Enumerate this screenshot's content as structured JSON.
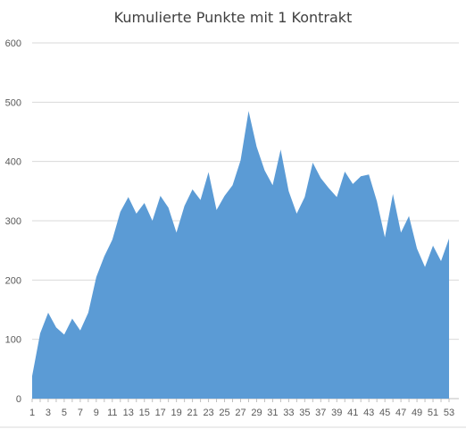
{
  "chart_data": {
    "type": "area",
    "title": "Kumulierte Punkte mit 1 Kontrakt",
    "xlabel": "",
    "ylabel": "",
    "ylim": [
      0,
      600
    ],
    "yticks": [
      0,
      100,
      200,
      300,
      400,
      500,
      600
    ],
    "x": [
      1,
      2,
      3,
      4,
      5,
      6,
      7,
      8,
      9,
      10,
      11,
      12,
      13,
      14,
      15,
      16,
      17,
      18,
      19,
      20,
      21,
      22,
      23,
      24,
      25,
      26,
      27,
      28,
      29,
      30,
      31,
      32,
      33,
      34,
      35,
      36,
      37,
      38,
      39,
      40,
      41,
      42,
      43,
      44,
      45,
      46,
      47,
      48,
      49,
      50,
      51,
      52,
      53
    ],
    "xtick_labels": [
      "1",
      "3",
      "5",
      "7",
      "9",
      "11",
      "13",
      "15",
      "17",
      "19",
      "21",
      "23",
      "25",
      "27",
      "29",
      "31",
      "33",
      "35",
      "37",
      "39",
      "41",
      "43",
      "45",
      "47",
      "49",
      "51",
      "53"
    ],
    "values": [
      38,
      110,
      145,
      120,
      108,
      135,
      115,
      145,
      205,
      240,
      268,
      315,
      340,
      312,
      330,
      300,
      342,
      322,
      280,
      325,
      353,
      335,
      382,
      318,
      342,
      360,
      402,
      485,
      425,
      385,
      360,
      420,
      350,
      312,
      340,
      398,
      372,
      355,
      340,
      383,
      362,
      375,
      378,
      333,
      272,
      345,
      280,
      308,
      253,
      222,
      258,
      232,
      270
    ],
    "grid": true,
    "color": "#5b9bd5"
  }
}
